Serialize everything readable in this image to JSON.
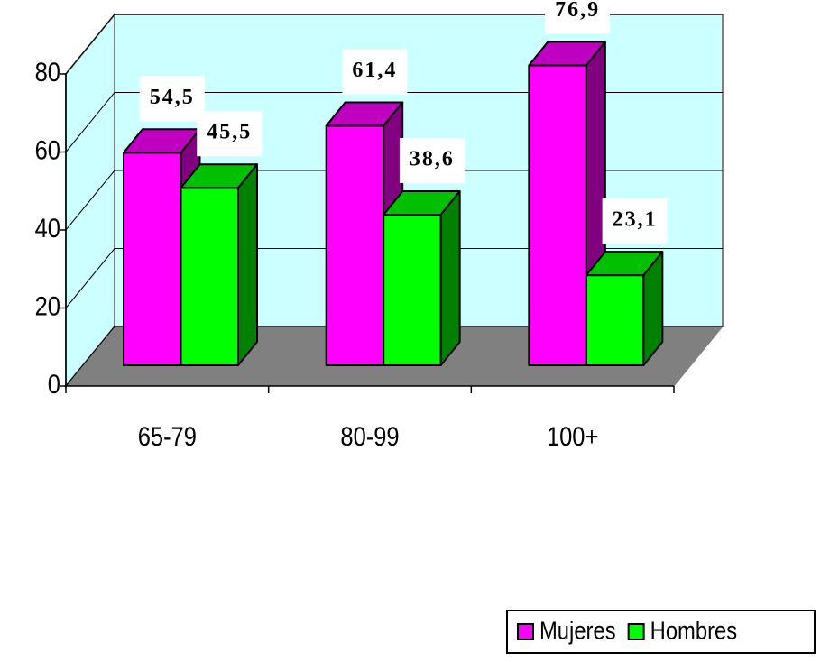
{
  "chart_data": {
    "type": "bar3d",
    "categories": [
      "65-79",
      "80-99",
      "100+"
    ],
    "series": [
      {
        "name": "Mujeres",
        "color": "#ff00ff",
        "values": [
          54.5,
          61.4,
          76.9
        ],
        "value_labels": [
          "54,5",
          "61,4",
          "76,9"
        ]
      },
      {
        "name": "Hombres",
        "color": "#00ff00",
        "values": [
          45.5,
          38.6,
          23.1
        ],
        "value_labels": [
          "45,5",
          "38,6",
          "23,1"
        ]
      }
    ],
    "ylim": [
      0,
      80
    ],
    "yticks": [
      0,
      20,
      40,
      60,
      80
    ],
    "grid": true,
    "legend": "bottom-right"
  }
}
